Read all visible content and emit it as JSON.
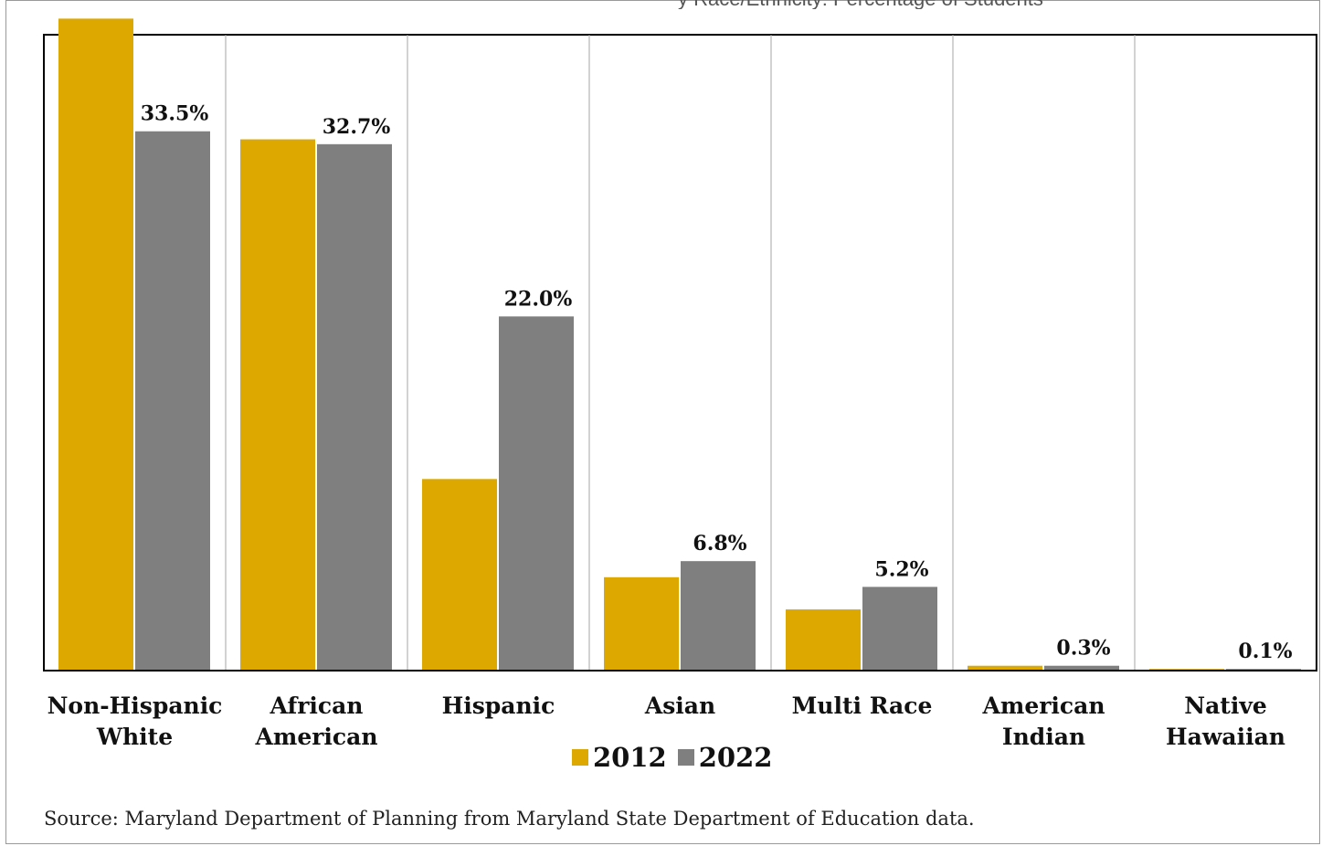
{
  "header_fragment": "y Race/Ethnicity: Percentage of Students",
  "chart_data": {
    "type": "bar",
    "title": "",
    "xlabel": "",
    "ylabel": "",
    "ylim": [
      0,
      39.5
    ],
    "grid": false,
    "legend_position": "bottom",
    "categories": [
      [
        "Non-Hispanic",
        "White"
      ],
      [
        "African",
        "American"
      ],
      [
        "Hispanic"
      ],
      [
        "Asian"
      ],
      [
        "Multi Race"
      ],
      [
        "American",
        "Indian"
      ],
      [
        "Native",
        "Hawaiian"
      ]
    ],
    "series": [
      {
        "name": "2012",
        "color": "#DDA900",
        "values": [
          40.5,
          33.0,
          11.9,
          5.8,
          3.8,
          0.3,
          0.1
        ],
        "labels": [
          "",
          "",
          "",
          "",
          "",
          "",
          ""
        ]
      },
      {
        "name": "2022",
        "color": "#7F7F7F",
        "values": [
          33.5,
          32.7,
          22.0,
          6.8,
          5.2,
          0.3,
          0.1
        ],
        "labels": [
          "33.5%",
          "32.7%",
          "22.0%",
          "6.8%",
          "5.2%",
          "0.3%",
          "0.1%"
        ]
      }
    ]
  },
  "source": "Source: Maryland Department of Planning from Maryland State Department of Education data."
}
